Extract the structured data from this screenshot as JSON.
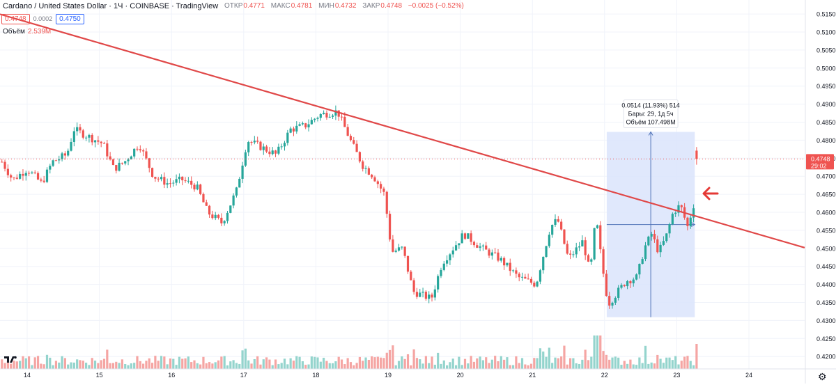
{
  "header": {
    "title": "Cardano / United States Dollar · 1Ч · COINBASE · TradingView",
    "ohlc": {
      "o_label": "ОТКР",
      "o": "0.4771",
      "h_label": "МАКС",
      "h": "0.4781",
      "l_label": "МИН",
      "l": "0.4732",
      "c_label": "ЗАКР",
      "c": "0.4748",
      "change": "−0.0025 (−0.52%)"
    }
  },
  "quotes": {
    "bid": "0.4748",
    "spread": "0.0002",
    "ask": "0.4750"
  },
  "volume_legend": {
    "label": "Объём",
    "value": "2.539M"
  },
  "colors": {
    "up": "#26a69a",
    "down": "#ef5350",
    "vol_up": "#94d4cd",
    "vol_down": "#f5a5a3",
    "trendline": "#e04848",
    "range_fill": "#dbe4fb",
    "range_line": "#5073b8",
    "grid": "#f0f3fa",
    "axis_text": "#131722"
  },
  "chart_data": {
    "type": "candlestick",
    "symbol": "ADA/USD",
    "interval": "1Ч",
    "exchange": "COINBASE",
    "ylim": [
      0.4185,
      0.52
    ],
    "y_ticks": [
      "0.5150",
      "0.5100",
      "0.5050",
      "0.5000",
      "0.4950",
      "0.4900",
      "0.4850",
      "0.4800",
      "0.4750",
      "0.4700",
      "0.4650",
      "0.4600",
      "0.4550",
      "0.4500",
      "0.4450",
      "0.4400",
      "0.4350",
      "0.4300",
      "0.4250",
      "0.4200"
    ],
    "x_ticks": [
      "14",
      "15",
      "16",
      "17",
      "18",
      "19",
      "20",
      "21",
      "22",
      "23",
      "24"
    ],
    "last_price": {
      "value": "0.4748",
      "countdown": "29:02"
    },
    "trendline": {
      "from_price": 0.5145,
      "from_day": 13.7,
      "to_price": 0.4556,
      "to_day": 23.84,
      "extended": true
    },
    "measure_box": {
      "label_line1": "0.0514 (11.93%) 514",
      "label_line2": "Бары: 29, 1д 5ч",
      "label_line3": "Объём 107.498M",
      "price_from": 0.4309,
      "price_to": 0.4823,
      "day_from": 22.03,
      "day_to": 23.25
    },
    "annotation": "red arrow pointing at trendline breakout",
    "anchors": [
      {
        "d": 13.65,
        "p": 0.474
      },
      {
        "d": 13.8,
        "p": 0.469
      },
      {
        "d": 14.0,
        "p": 0.472
      },
      {
        "d": 14.2,
        "p": 0.468
      },
      {
        "d": 14.35,
        "p": 0.474
      },
      {
        "d": 14.55,
        "p": 0.476
      },
      {
        "d": 14.65,
        "p": 0.483
      },
      {
        "d": 14.85,
        "p": 0.481
      },
      {
        "d": 15.05,
        "p": 0.479
      },
      {
        "d": 15.2,
        "p": 0.472
      },
      {
        "d": 15.35,
        "p": 0.474
      },
      {
        "d": 15.55,
        "p": 0.479
      },
      {
        "d": 15.75,
        "p": 0.47
      },
      {
        "d": 15.95,
        "p": 0.468
      },
      {
        "d": 16.15,
        "p": 0.469
      },
      {
        "d": 16.35,
        "p": 0.467
      },
      {
        "d": 16.5,
        "p": 0.46
      },
      {
        "d": 16.7,
        "p": 0.457
      },
      {
        "d": 16.9,
        "p": 0.466
      },
      {
        "d": 17.05,
        "p": 0.48
      },
      {
        "d": 17.25,
        "p": 0.478
      },
      {
        "d": 17.45,
        "p": 0.476
      },
      {
        "d": 17.65,
        "p": 0.483
      },
      {
        "d": 17.85,
        "p": 0.484
      },
      {
        "d": 18.05,
        "p": 0.487
      },
      {
        "d": 18.3,
        "p": 0.488
      },
      {
        "d": 18.5,
        "p": 0.479
      },
      {
        "d": 18.65,
        "p": 0.473
      },
      {
        "d": 18.8,
        "p": 0.47
      },
      {
        "d": 18.95,
        "p": 0.465
      },
      {
        "d": 19.05,
        "p": 0.449
      },
      {
        "d": 19.2,
        "p": 0.45
      },
      {
        "d": 19.35,
        "p": 0.438
      },
      {
        "d": 19.6,
        "p": 0.436
      },
      {
        "d": 19.75,
        "p": 0.446
      },
      {
        "d": 19.9,
        "p": 0.45
      },
      {
        "d": 20.05,
        "p": 0.454
      },
      {
        "d": 20.3,
        "p": 0.45
      },
      {
        "d": 20.55,
        "p": 0.447
      },
      {
        "d": 20.8,
        "p": 0.442
      },
      {
        "d": 21.05,
        "p": 0.44
      },
      {
        "d": 21.25,
        "p": 0.456
      },
      {
        "d": 21.35,
        "p": 0.458
      },
      {
        "d": 21.5,
        "p": 0.447
      },
      {
        "d": 21.7,
        "p": 0.452
      },
      {
        "d": 21.8,
        "p": 0.443
      },
      {
        "d": 21.88,
        "p": 0.459
      },
      {
        "d": 21.96,
        "p": 0.446
      },
      {
        "d": 22.05,
        "p": 0.4345
      },
      {
        "d": 22.3,
        "p": 0.441
      },
      {
        "d": 22.45,
        "p": 0.442
      },
      {
        "d": 22.55,
        "p": 0.45
      },
      {
        "d": 22.65,
        "p": 0.454
      },
      {
        "d": 22.75,
        "p": 0.449
      },
      {
        "d": 22.85,
        "p": 0.453
      },
      {
        "d": 22.95,
        "p": 0.46
      },
      {
        "d": 23.05,
        "p": 0.462
      },
      {
        "d": 23.15,
        "p": 0.456
      },
      {
        "d": 23.22,
        "p": 0.461
      },
      {
        "d": 23.26,
        "p": 0.464
      },
      {
        "d": 23.28,
        "p": 0.4771
      }
    ]
  }
}
